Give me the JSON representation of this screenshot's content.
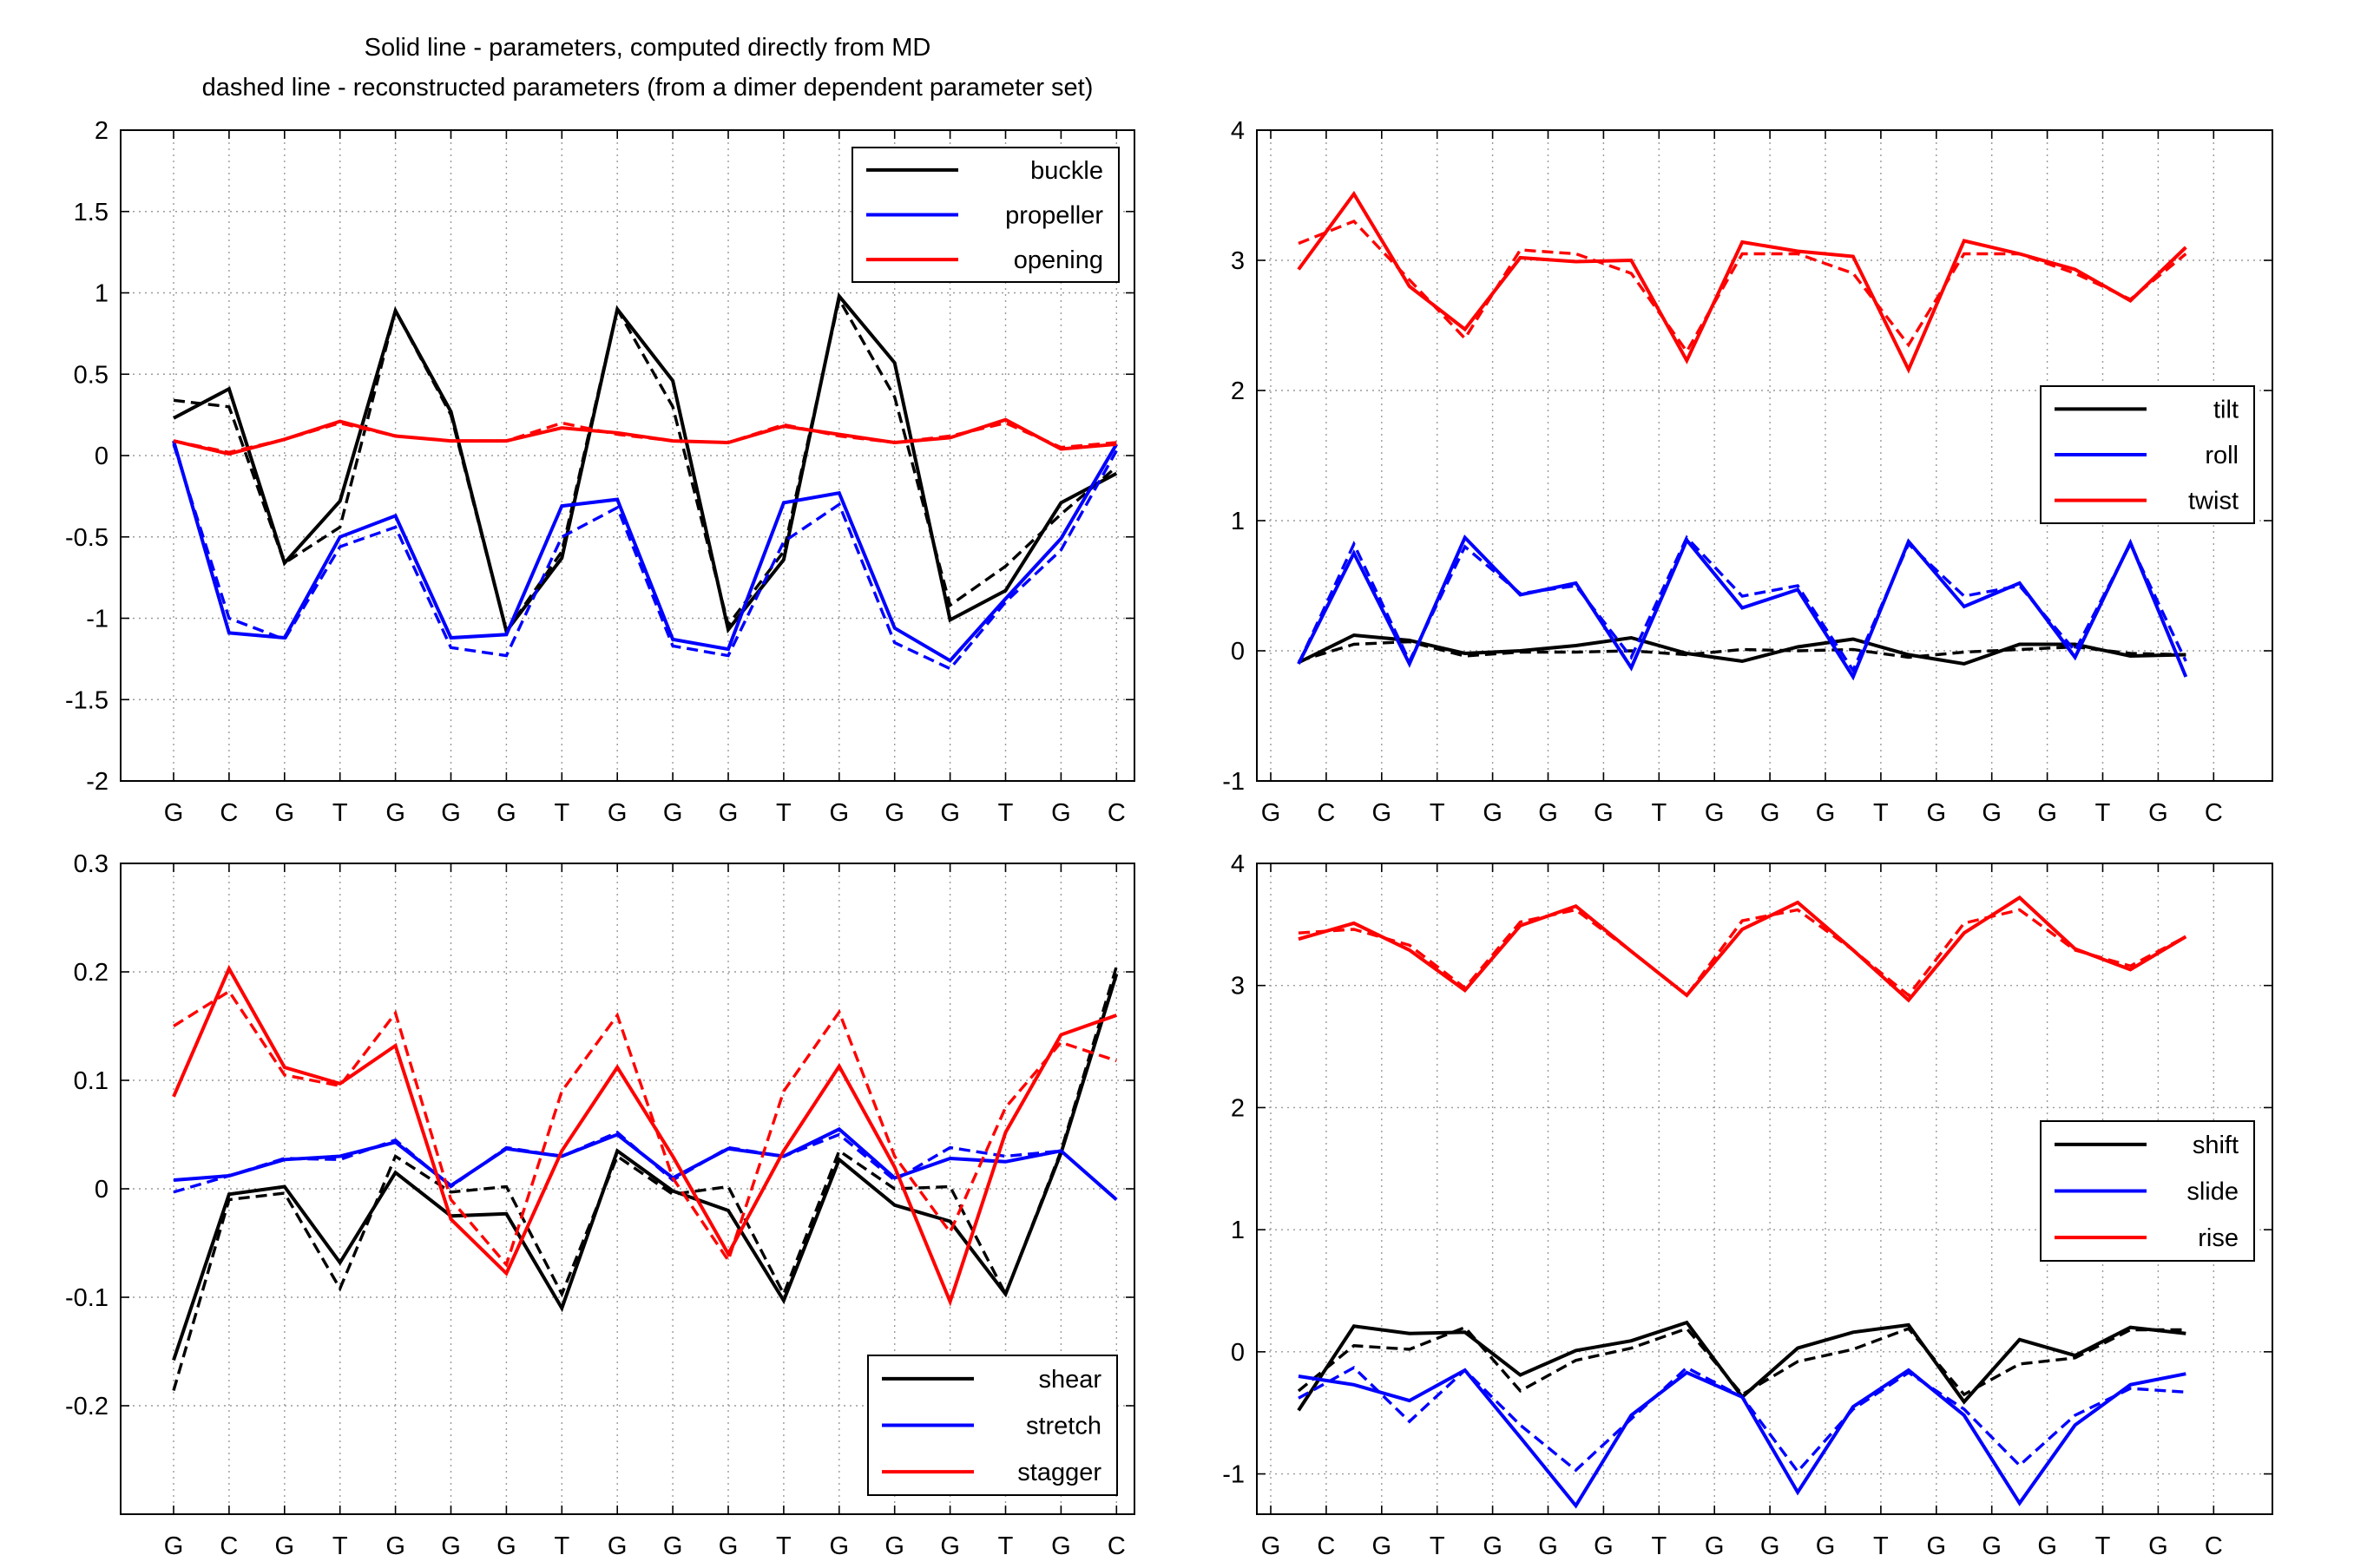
{
  "figure_title": [
    "Solid line - parameters, computed directly from MD",
    "dashed line - reconstructed parameters (from a dimer dependent parameter set)"
  ],
  "colors": {
    "black": "#000000",
    "blue": "#0000ff",
    "red": "#ff0000",
    "grid": "#9a9a9a",
    "axes": "#000000"
  },
  "chart_data": [
    {
      "id": "base-pair-rotations",
      "type": "line",
      "categories": [
        "G",
        "C",
        "G",
        "T",
        "G",
        "G",
        "G",
        "T",
        "G",
        "G",
        "G",
        "T",
        "G",
        "G",
        "G",
        "T",
        "G",
        "C"
      ],
      "ylim": [
        -2,
        2
      ],
      "yticks": [
        "-2",
        "-1.5",
        "-1",
        "-0.5",
        "0",
        "0.5",
        "1",
        "1.5",
        "2"
      ],
      "ytick_values": [
        -2,
        -1.5,
        -1,
        -0.5,
        0,
        0.5,
        1,
        1.5,
        2
      ],
      "grid": true,
      "legend_position": "top-right",
      "series": [
        {
          "name": "buckle",
          "color": "black",
          "solid": [
            0.23,
            0.41,
            -0.66,
            -0.28,
            0.89,
            0.27,
            -1.08,
            -0.63,
            0.9,
            0.46,
            -1.07,
            -0.64,
            0.98,
            0.57,
            -1.01,
            -0.83,
            -0.29,
            -0.11
          ],
          "dashed": [
            0.34,
            0.3,
            -0.66,
            -0.44,
            0.89,
            0.25,
            -1.08,
            -0.59,
            0.9,
            0.3,
            -1.04,
            -0.59,
            0.96,
            0.36,
            -0.92,
            -0.68,
            -0.36,
            -0.07
          ]
        },
        {
          "name": "propeller",
          "color": "blue",
          "solid": [
            0.09,
            -1.09,
            -1.12,
            -0.5,
            -0.37,
            -1.12,
            -1.1,
            -0.31,
            -0.27,
            -1.13,
            -1.19,
            -0.29,
            -0.23,
            -1.06,
            -1.26,
            -0.88,
            -0.51,
            0.07
          ],
          "dashed": [
            0.07,
            -1.0,
            -1.13,
            -0.56,
            -0.44,
            -1.18,
            -1.23,
            -0.5,
            -0.32,
            -1.17,
            -1.23,
            -0.53,
            -0.3,
            -1.15,
            -1.31,
            -0.9,
            -0.58,
            0.03
          ]
        },
        {
          "name": "opening",
          "color": "red",
          "solid": [
            0.09,
            0.01,
            0.1,
            0.21,
            0.12,
            0.09,
            0.09,
            0.17,
            0.14,
            0.09,
            0.08,
            0.18,
            0.13,
            0.08,
            0.11,
            0.22,
            0.04,
            0.07
          ],
          "dashed": [
            0.09,
            0.02,
            0.1,
            0.2,
            0.12,
            0.09,
            0.09,
            0.2,
            0.13,
            0.09,
            0.08,
            0.19,
            0.12,
            0.08,
            0.12,
            0.2,
            0.05,
            0.08
          ]
        }
      ]
    },
    {
      "id": "step-rotations",
      "type": "line",
      "categories": [
        "G",
        "C",
        "G",
        "T",
        "G",
        "G",
        "G",
        "T",
        "G",
        "G",
        "G",
        "T",
        "G",
        "G",
        "G",
        "T",
        "G",
        "C"
      ],
      "ylim": [
        -1,
        4
      ],
      "yticks": [
        "-1",
        "0",
        "1",
        "2",
        "3",
        "4"
      ],
      "ytick_values": [
        -1,
        0,
        1,
        2,
        3,
        4
      ],
      "grid": true,
      "legend_position": "right",
      "series": [
        {
          "name": "tilt",
          "color": "black",
          "solid": [
            -0.09,
            0.12,
            0.08,
            -0.02,
            0.0,
            0.04,
            0.1,
            -0.02,
            -0.08,
            0.03,
            0.09,
            -0.03,
            -0.1,
            0.05,
            0.05,
            -0.04,
            -0.03
          ],
          "dashed": [
            -0.08,
            0.05,
            0.07,
            -0.04,
            -0.01,
            -0.01,
            0.0,
            -0.03,
            0.01,
            0.0,
            0.01,
            -0.05,
            -0.01,
            0.01,
            0.03,
            -0.02,
            -0.03
          ]
        },
        {
          "name": "roll",
          "color": "blue",
          "solid": [
            -0.1,
            0.75,
            -0.1,
            0.87,
            0.43,
            0.52,
            -0.13,
            0.85,
            0.33,
            0.47,
            -0.2,
            0.84,
            0.34,
            0.52,
            -0.05,
            0.83,
            -0.2
          ],
          "dashed": [
            -0.1,
            0.82,
            -0.08,
            0.8,
            0.44,
            0.5,
            -0.05,
            0.87,
            0.42,
            0.5,
            -0.15,
            0.82,
            0.42,
            0.5,
            0.0,
            0.82,
            -0.08
          ]
        },
        {
          "name": "twist",
          "color": "red",
          "solid": [
            2.93,
            3.51,
            2.8,
            2.47,
            3.02,
            2.99,
            3.0,
            2.23,
            3.14,
            3.07,
            3.03,
            2.16,
            3.15,
            3.05,
            2.93,
            2.69,
            3.1
          ],
          "dashed": [
            3.13,
            3.3,
            2.85,
            2.4,
            3.08,
            3.05,
            2.9,
            2.3,
            3.05,
            3.05,
            2.9,
            2.35,
            3.05,
            3.05,
            2.9,
            2.7,
            3.05
          ]
        }
      ]
    },
    {
      "id": "base-pair-translations",
      "type": "line",
      "categories": [
        "G",
        "C",
        "G",
        "T",
        "G",
        "G",
        "G",
        "T",
        "G",
        "G",
        "G",
        "T",
        "G",
        "G",
        "G",
        "T",
        "G",
        "C"
      ],
      "ylim": [
        -0.3,
        0.3
      ],
      "yticks": [
        "-0.2",
        "-0.1",
        "0",
        "0.1",
        "0.2",
        "0.3"
      ],
      "ytick_values": [
        -0.2,
        -0.1,
        0,
        0.1,
        0.2,
        0.3
      ],
      "grid": true,
      "legend_position": "bottom-right",
      "series": [
        {
          "name": "shear",
          "color": "black",
          "solid": [
            -0.158,
            -0.005,
            0.002,
            -0.068,
            0.015,
            -0.025,
            -0.023,
            -0.11,
            0.035,
            -0.002,
            -0.02,
            -0.103,
            0.027,
            -0.015,
            -0.03,
            -0.097,
            0.033,
            0.198
          ],
          "dashed": [
            -0.186,
            -0.01,
            -0.004,
            -0.092,
            0.03,
            -0.003,
            0.002,
            -0.097,
            0.03,
            -0.005,
            0.002,
            -0.097,
            0.035,
            0.0,
            0.002,
            -0.097,
            0.035,
            0.205
          ]
        },
        {
          "name": "stretch",
          "color": "blue",
          "solid": [
            0.008,
            0.012,
            0.027,
            0.03,
            0.043,
            0.003,
            0.037,
            0.03,
            0.05,
            0.01,
            0.037,
            0.03,
            0.055,
            0.01,
            0.028,
            0.025,
            0.035,
            -0.01
          ],
          "dashed": [
            -0.003,
            0.012,
            0.028,
            0.027,
            0.045,
            0.002,
            0.038,
            0.03,
            0.052,
            0.008,
            0.038,
            0.03,
            0.05,
            0.008,
            0.038,
            0.03,
            0.035,
            -0.01
          ]
        },
        {
          "name": "stagger",
          "color": "red",
          "solid": [
            0.085,
            0.203,
            0.112,
            0.097,
            0.132,
            -0.028,
            -0.078,
            0.035,
            0.112,
            0.03,
            -0.06,
            0.035,
            0.113,
            0.02,
            -0.104,
            0.052,
            0.142,
            0.16
          ],
          "dashed": [
            0.15,
            0.182,
            0.105,
            0.095,
            0.162,
            -0.01,
            -0.07,
            0.09,
            0.16,
            0.01,
            -0.066,
            0.09,
            0.163,
            0.03,
            -0.04,
            0.075,
            0.135,
            0.118
          ]
        }
      ]
    },
    {
      "id": "step-translations",
      "type": "line",
      "categories": [
        "G",
        "C",
        "G",
        "T",
        "G",
        "G",
        "G",
        "T",
        "G",
        "G",
        "G",
        "T",
        "G",
        "G",
        "G",
        "T",
        "G",
        "C"
      ],
      "ylim": [
        -1.33,
        4
      ],
      "yticks": [
        "-1",
        "0",
        "1",
        "2",
        "3",
        "4"
      ],
      "ytick_values": [
        -1,
        0,
        1,
        2,
        3,
        4
      ],
      "grid": true,
      "legend_position": "right",
      "series": [
        {
          "name": "shift",
          "color": "black",
          "solid": [
            -0.48,
            0.21,
            0.15,
            0.16,
            -0.19,
            0.01,
            0.09,
            0.24,
            -0.37,
            0.03,
            0.16,
            0.22,
            -0.41,
            0.1,
            -0.03,
            0.2,
            0.15
          ],
          "dashed": [
            -0.32,
            0.05,
            0.02,
            0.2,
            -0.32,
            -0.07,
            0.03,
            0.19,
            -0.35,
            -0.08,
            0.02,
            0.19,
            -0.35,
            -0.1,
            -0.05,
            0.18,
            0.18
          ]
        },
        {
          "name": "slide",
          "color": "blue",
          "solid": [
            -0.2,
            -0.27,
            -0.4,
            -0.15,
            -0.7,
            -1.26,
            -0.52,
            -0.17,
            -0.37,
            -1.15,
            -0.45,
            -0.15,
            -0.52,
            -1.24,
            -0.6,
            -0.27,
            -0.18
          ],
          "dashed": [
            -0.38,
            -0.13,
            -0.57,
            -0.15,
            -0.6,
            -0.97,
            -0.55,
            -0.13,
            -0.37,
            -0.98,
            -0.47,
            -0.17,
            -0.47,
            -0.93,
            -0.52,
            -0.3,
            -0.33
          ]
        },
        {
          "name": "rise",
          "color": "red",
          "solid": [
            3.38,
            3.51,
            3.29,
            2.96,
            3.49,
            3.65,
            3.28,
            2.92,
            3.46,
            3.68,
            3.29,
            2.88,
            3.43,
            3.72,
            3.3,
            3.13,
            3.4
          ],
          "dashed": [
            3.43,
            3.46,
            3.33,
            2.98,
            3.52,
            3.62,
            3.28,
            2.92,
            3.53,
            3.62,
            3.29,
            2.92,
            3.51,
            3.62,
            3.29,
            3.16,
            3.4
          ]
        }
      ]
    }
  ]
}
